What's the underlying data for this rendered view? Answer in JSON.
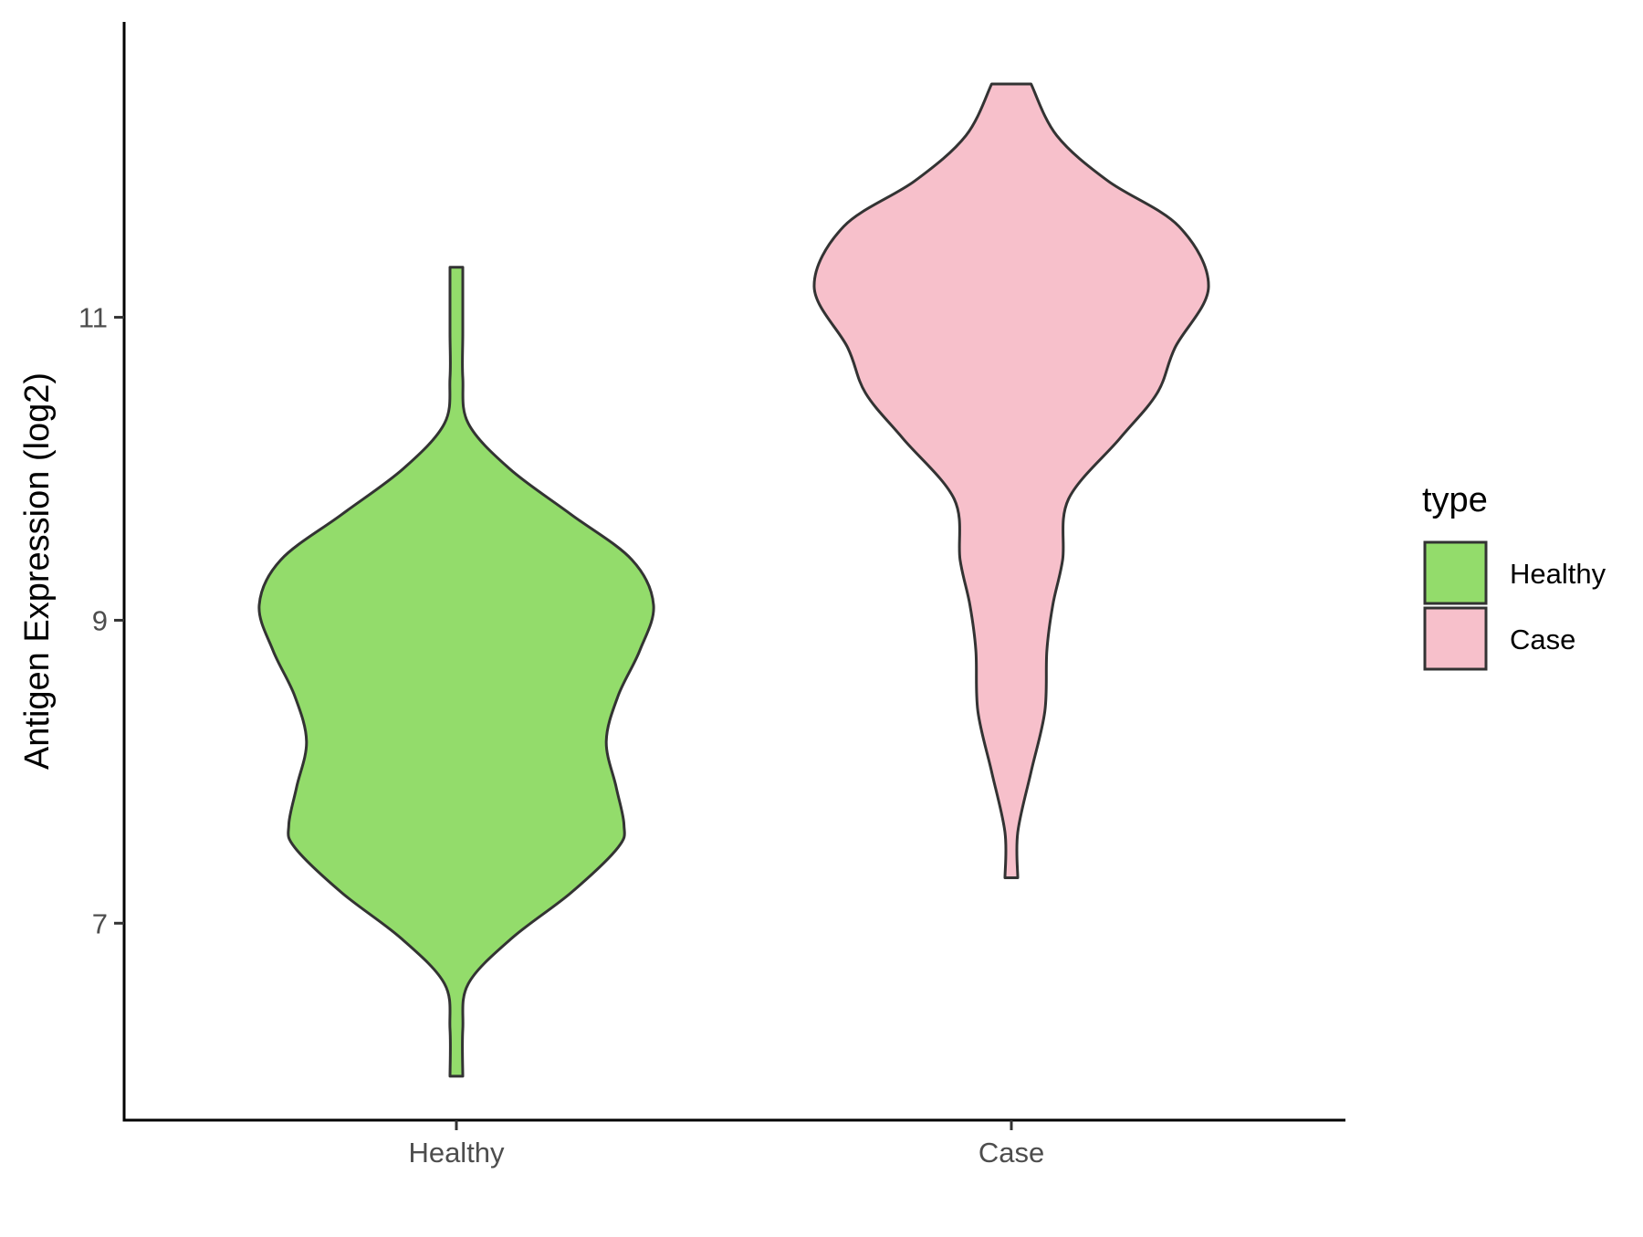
{
  "chart_data": {
    "type": "violin",
    "title": "",
    "xlabel": "",
    "ylabel": "Antigen Expression (log2)",
    "categories": [
      "Healthy",
      "Case"
    ],
    "y_ticks": [
      7,
      9,
      11
    ],
    "y_tick_labels": [
      "7",
      "9",
      "11"
    ],
    "ylim": [
      5.7,
      12.95
    ],
    "grid": false,
    "legend": {
      "title": "type",
      "placement": "right",
      "items": [
        {
          "label": "Healthy",
          "color": "#93dc6b"
        },
        {
          "label": "Case",
          "color": "#f7c0cb"
        }
      ]
    },
    "series": [
      {
        "name": "Healthy",
        "color": "#93dc6b",
        "y_min": 5.99,
        "y_max": 11.33,
        "density_profile": [
          [
            5.99,
            0.03
          ],
          [
            6.3,
            0.03
          ],
          [
            6.6,
            0.06
          ],
          [
            6.9,
            0.28
          ],
          [
            7.2,
            0.58
          ],
          [
            7.5,
            0.82
          ],
          [
            7.65,
            0.85
          ],
          [
            7.9,
            0.81
          ],
          [
            8.2,
            0.76
          ],
          [
            8.5,
            0.82
          ],
          [
            8.8,
            0.93
          ],
          [
            9.1,
            1.0
          ],
          [
            9.4,
            0.89
          ],
          [
            9.7,
            0.58
          ],
          [
            10.0,
            0.27
          ],
          [
            10.3,
            0.06
          ],
          [
            10.6,
            0.0
          ],
          [
            10.9,
            0.0
          ],
          [
            11.33,
            0.03
          ]
        ]
      },
      {
        "name": "Case",
        "color": "#f7c0cb",
        "y_min": 7.3,
        "y_max": 12.54,
        "density_profile": [
          [
            7.3,
            0.01
          ],
          [
            7.6,
            0.02
          ],
          [
            8.0,
            0.1
          ],
          [
            8.4,
            0.17
          ],
          [
            8.8,
            0.18
          ],
          [
            9.1,
            0.21
          ],
          [
            9.4,
            0.26
          ],
          [
            9.8,
            0.29
          ],
          [
            10.2,
            0.55
          ],
          [
            10.5,
            0.74
          ],
          [
            10.8,
            0.83
          ],
          [
            11.2,
            1.0
          ],
          [
            11.6,
            0.85
          ],
          [
            11.9,
            0.49
          ],
          [
            12.2,
            0.23
          ],
          [
            12.54,
            0.1
          ]
        ]
      }
    ]
  }
}
